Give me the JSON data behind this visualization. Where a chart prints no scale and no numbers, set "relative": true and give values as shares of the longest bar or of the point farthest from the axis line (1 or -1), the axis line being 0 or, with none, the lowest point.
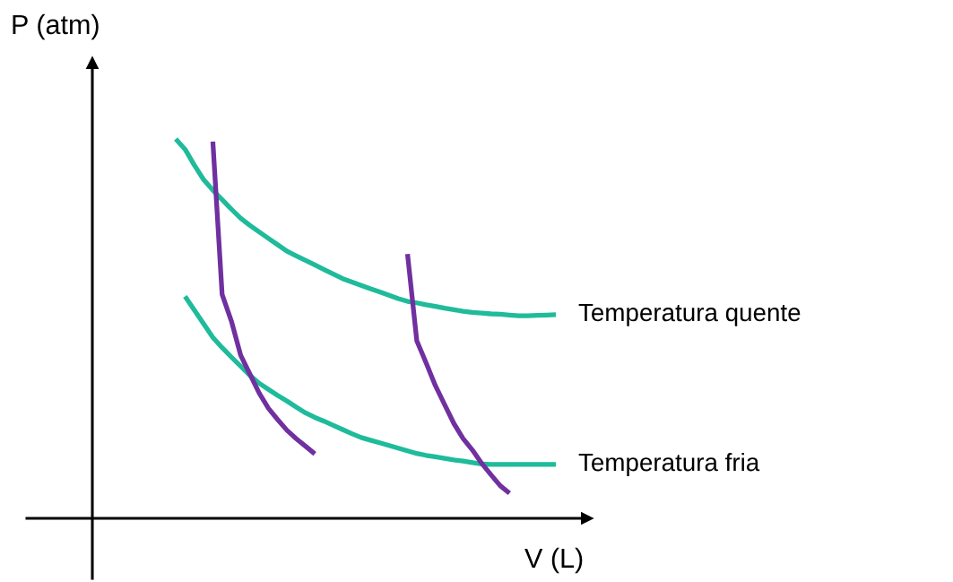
{
  "chart_data": {
    "type": "line",
    "relative": true,
    "xlabel": "V (L)",
    "ylabel": "P (atm)",
    "line_style": "solid",
    "categories": [
      null,
      null,
      null,
      null,
      null,
      null,
      null,
      null,
      null,
      null,
      null,
      null,
      null,
      null,
      null,
      null,
      null,
      null,
      null,
      null,
      null,
      null,
      null,
      null,
      null,
      null,
      null,
      null,
      null,
      null,
      null,
      null,
      null,
      null,
      null,
      null,
      null,
      null,
      null,
      null,
      null,
      null,
      null,
      null,
      null,
      null,
      null,
      null,
      null,
      null,
      null
    ],
    "series": [
      {
        "name": "Temperatura quente",
        "color": "#1fbb9a",
        "values": [
          null,
          null,
          null,
          null,
          null,
          null,
          null,
          null,
          null,
          1.0,
          0.973,
          0.931,
          0.893,
          0.865,
          0.84,
          0.815,
          0.791,
          0.772,
          0.755,
          0.738,
          0.721,
          0.704,
          0.692,
          0.68,
          0.668,
          0.656,
          0.644,
          0.632,
          0.623,
          0.614,
          0.605,
          0.597,
          0.588,
          0.579,
          0.572,
          0.568,
          0.563,
          0.559,
          0.554,
          0.55,
          0.546,
          0.543,
          0.541,
          0.539,
          0.538,
          0.536,
          0.534,
          0.534,
          0.535,
          0.536,
          0.537
        ]
      },
      {
        "name": "Temperatura fria",
        "color": "#1fbb9a",
        "values": [
          null,
          null,
          null,
          null,
          null,
          null,
          null,
          null,
          null,
          null,
          0.585,
          0.549,
          0.513,
          0.477,
          0.45,
          0.425,
          0.401,
          0.377,
          0.356,
          0.34,
          0.324,
          0.309,
          0.293,
          0.278,
          0.266,
          0.256,
          0.245,
          0.234,
          0.223,
          0.213,
          0.206,
          0.199,
          0.192,
          0.185,
          0.178,
          0.171,
          0.166,
          0.162,
          0.158,
          0.154,
          0.151,
          0.147,
          0.143,
          0.142,
          0.142,
          0.142,
          0.142,
          0.142,
          0.142,
          0.142,
          0.142
        ]
      },
      {
        "color": "#7030a0",
        "values": [
          null,
          null,
          null,
          null,
          null,
          null,
          null,
          null,
          null,
          null,
          null,
          null,
          null,
          0.993,
          0.59,
          0.52,
          0.43,
          0.38,
          0.33,
          0.29,
          0.26,
          0.232,
          0.21,
          0.19,
          0.17,
          null,
          null,
          null,
          null,
          null,
          null,
          null,
          null,
          null,
          null,
          null,
          null,
          null,
          null,
          null,
          null,
          null,
          null,
          null,
          null,
          null,
          null,
          null,
          null,
          null,
          null
        ]
      },
      {
        "color": "#7030a0",
        "values": [
          null,
          null,
          null,
          null,
          null,
          null,
          null,
          null,
          null,
          null,
          null,
          null,
          null,
          null,
          null,
          null,
          null,
          null,
          null,
          null,
          null,
          null,
          null,
          null,
          null,
          null,
          null,
          null,
          null,
          null,
          null,
          null,
          null,
          null,
          0.697,
          0.468,
          0.41,
          0.35,
          0.3,
          0.25,
          0.21,
          0.18,
          0.145,
          0.115,
          0.086,
          0.066,
          null,
          null,
          null,
          null,
          null
        ]
      }
    ]
  }
}
